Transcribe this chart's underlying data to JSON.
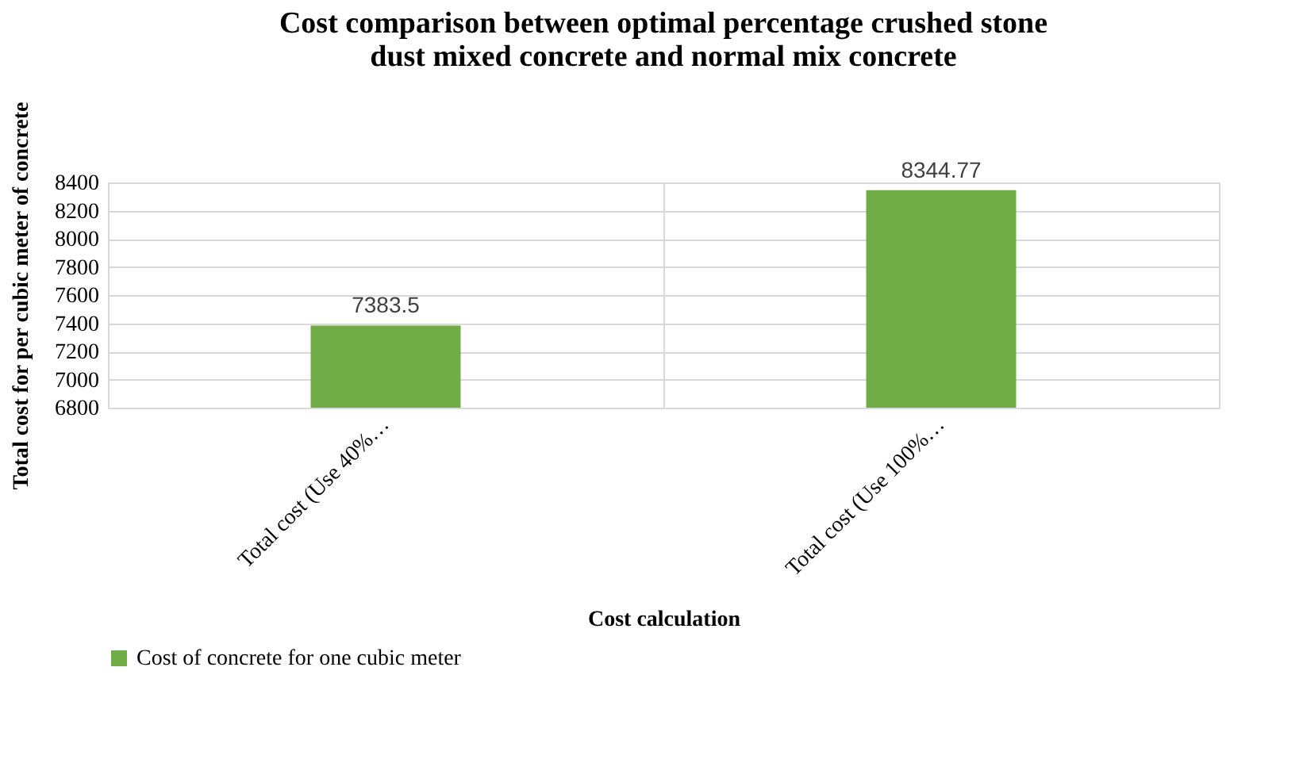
{
  "chart_data": {
    "type": "bar",
    "title": [
      "Cost comparison between optimal percentage crushed stone",
      "dust mixed concrete and normal mix concrete"
    ],
    "xlabel": "Cost calculation",
    "ylabel": "Total cost for per cubic meter of concrete",
    "categories": [
      "Total cost (Use 40%…",
      "Total cost (Use 100%…"
    ],
    "series": [
      {
        "name": "Cost of concrete for one cubic meter",
        "color": "#70ad47",
        "values": [
          7383.5,
          8344.77
        ]
      }
    ],
    "ylim": [
      6800,
      8400
    ],
    "yticks": [
      6800,
      7000,
      7200,
      7400,
      7600,
      7800,
      8000,
      8200,
      8400
    ],
    "grid": true,
    "data_labels": true,
    "legend": "bottom"
  }
}
